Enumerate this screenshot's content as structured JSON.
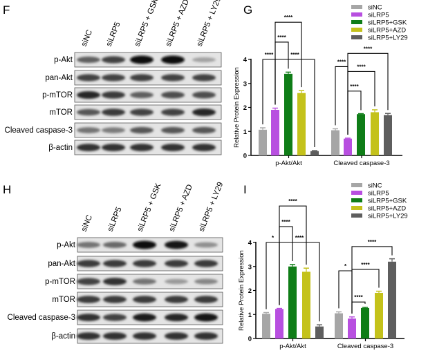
{
  "blots": [
    {
      "panel": "F",
      "lanes": [
        "siNC",
        "siLRP5",
        "siLRP5 + GSK",
        "siLRP5 + AZD",
        "siLRP5 + LY29"
      ],
      "rows": [
        {
          "label": "p-Akt",
          "band_intensity": [
            0.55,
            0.7,
            1,
            1,
            0.2
          ]
        },
        {
          "label": "pan-Akt",
          "band_intensity": [
            0.7,
            0.7,
            0.72,
            0.7,
            0.7
          ]
        },
        {
          "label": "p-mTOR",
          "band_intensity": [
            0.85,
            0.75,
            0.55,
            0.65,
            0.65
          ]
        },
        {
          "label": "mTOR",
          "band_intensity": [
            0.6,
            0.75,
            0.7,
            0.7,
            0.85
          ]
        },
        {
          "label": "Cleaved caspase-3",
          "band_intensity": [
            0.45,
            0.4,
            0.6,
            0.6,
            0.6
          ]
        },
        {
          "label": "β-actin",
          "band_intensity": [
            0.8,
            0.8,
            0.8,
            0.8,
            0.8
          ]
        }
      ]
    },
    {
      "panel": "H",
      "lanes": [
        "siNC",
        "siLRP5",
        "siLRP5 + GSK",
        "siLRP5 + AZD",
        "siLRP5 + LY29"
      ],
      "rows": [
        {
          "label": "p-Akt",
          "band_intensity": [
            0.45,
            0.5,
            1,
            0.95,
            0.3
          ]
        },
        {
          "label": "pan-Akt",
          "band_intensity": [
            0.75,
            0.75,
            0.75,
            0.75,
            0.75
          ]
        },
        {
          "label": "p-mTOR",
          "band_intensity": [
            0.7,
            0.8,
            0.45,
            0.25,
            0.35
          ]
        },
        {
          "label": "mTOR",
          "band_intensity": [
            0.75,
            0.75,
            0.75,
            0.75,
            0.75
          ]
        },
        {
          "label": "Cleaved caspase-3",
          "band_intensity": [
            0.8,
            0.7,
            0.9,
            0.85,
            0.95
          ]
        },
        {
          "label": "β-actin",
          "band_intensity": [
            0.8,
            0.8,
            0.8,
            0.8,
            0.8
          ]
        }
      ]
    }
  ],
  "chart_data": [
    {
      "panel": "G",
      "type": "bar",
      "ylabel": "Relative Protein Expression",
      "ylim": [
        0,
        4
      ],
      "yticks": [
        0,
        1,
        2,
        3,
        4
      ],
      "categories": [
        "p-Akt/Akt",
        "Cleaved caspase-3"
      ],
      "legend_position": "top-right",
      "series": [
        {
          "name": "siNC",
          "color": "#a6a6a6",
          "values": [
            1.07,
            1.05
          ],
          "errors": [
            0.08,
            0.06
          ]
        },
        {
          "name": "siLRP5",
          "color": "#b84fe0",
          "values": [
            1.9,
            0.7
          ],
          "errors": [
            0.07,
            0.02
          ]
        },
        {
          "name": "siLRP5+GSK",
          "color": "#0f7d17",
          "values": [
            3.4,
            1.72
          ],
          "errors": [
            0.07,
            0.02
          ]
        },
        {
          "name": "siLRP5+AZD",
          "color": "#c4c21b",
          "values": [
            2.6,
            1.8
          ],
          "errors": [
            0.1,
            0.1
          ]
        },
        {
          "name": "siLRP5+LY29",
          "color": "#5e5e5e",
          "values": [
            0.18,
            1.68
          ],
          "errors": [
            0.02,
            0.07
          ]
        }
      ],
      "significance": [
        {
          "category": 0,
          "from": 0,
          "to": 1,
          "y": 4.0,
          "label": "****"
        },
        {
          "category": 0,
          "from": 1,
          "to": 2,
          "y": 4.72,
          "label": "****"
        },
        {
          "category": 0,
          "from": 1,
          "to": 3,
          "y": 5.55,
          "label": "****"
        },
        {
          "category": 0,
          "from": 1,
          "to": 4,
          "y": 4.0,
          "label": "****"
        },
        {
          "category": 1,
          "from": 0,
          "to": 1,
          "y": 3.7,
          "label": "****"
        },
        {
          "category": 1,
          "from": 1,
          "to": 2,
          "y": 2.68,
          "label": "****"
        },
        {
          "category": 1,
          "from": 1,
          "to": 3,
          "y": 3.5,
          "label": "****"
        },
        {
          "category": 1,
          "from": 1,
          "to": 4,
          "y": 4.25,
          "label": "****"
        }
      ]
    },
    {
      "panel": "I",
      "type": "bar",
      "ylabel": "Relative Protein Expression",
      "ylim": [
        0,
        4
      ],
      "yticks": [
        0,
        1,
        2,
        3,
        4
      ],
      "categories": [
        "p-Akt/Akt",
        "Cleaved caspase-3"
      ],
      "legend_position": "top-right",
      "series": [
        {
          "name": "siNC",
          "color": "#a6a6a6",
          "values": [
            1.03,
            1.05
          ],
          "errors": [
            0.05,
            0.06
          ]
        },
        {
          "name": "siLRP5",
          "color": "#b84fe0",
          "values": [
            1.23,
            0.83
          ],
          "errors": [
            0.02,
            0.07
          ]
        },
        {
          "name": "siLRP5+GSK",
          "color": "#0f7d17",
          "values": [
            3.0,
            1.27
          ],
          "errors": [
            0.08,
            0.03
          ]
        },
        {
          "name": "siLRP5+AZD",
          "color": "#c4c21b",
          "values": [
            2.78,
            1.9
          ],
          "errors": [
            0.15,
            0.07
          ]
        },
        {
          "name": "siLRP5+LY29",
          "color": "#5e5e5e",
          "values": [
            0.5,
            3.2
          ],
          "errors": [
            0.07,
            0.12
          ]
        }
      ],
      "significance": [
        {
          "category": 0,
          "from": 0,
          "to": 1,
          "y": 4.0,
          "label": "*"
        },
        {
          "category": 0,
          "from": 1,
          "to": 2,
          "y": 4.66,
          "label": "****"
        },
        {
          "category": 0,
          "from": 1,
          "to": 3,
          "y": 5.52,
          "label": "****"
        },
        {
          "category": 0,
          "from": 1,
          "to": 4,
          "y": 4.0,
          "label": "****"
        },
        {
          "category": 1,
          "from": 0,
          "to": 1,
          "y": 2.82,
          "label": "*"
        },
        {
          "category": 1,
          "from": 1,
          "to": 2,
          "y": 1.52,
          "label": "****"
        },
        {
          "category": 1,
          "from": 1,
          "to": 3,
          "y": 2.88,
          "label": "****"
        },
        {
          "category": 1,
          "from": 1,
          "to": 4,
          "y": 3.83,
          "label": "****"
        }
      ]
    }
  ]
}
